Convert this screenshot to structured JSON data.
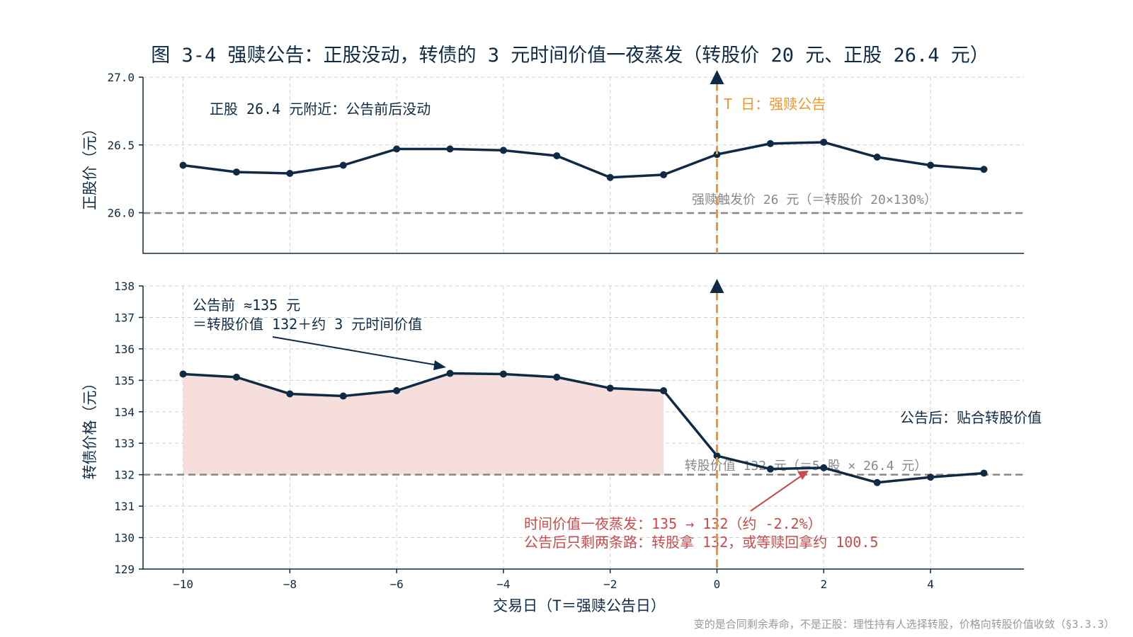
{
  "chart_data": [
    {
      "type": "line",
      "title": "图 3-4 强赎公告：正股没动，转债的 3 元时间价值一夜蒸发（转股价 20 元、正股 26.4 元）",
      "ylabel": "正股价（元）",
      "ylim": [
        25.7,
        27.0
      ],
      "yticks": [
        "26.0",
        "26.5",
        "27.0"
      ],
      "grid": true,
      "x": [
        -10,
        -9,
        -8,
        -7,
        -6,
        -5,
        -4,
        -3,
        -2,
        -1,
        0,
        1,
        2,
        3,
        4,
        5
      ],
      "values": [
        26.35,
        26.3,
        26.29,
        26.35,
        26.47,
        26.47,
        26.46,
        26.42,
        26.26,
        26.28,
        26.43,
        26.51,
        26.52,
        26.41,
        26.35,
        26.32
      ],
      "reference_line": {
        "y": 26.0,
        "label": "强赎触发价 26 元（＝转股价 20×130%）"
      },
      "event_label": "T 日：强赎公告",
      "annotation": "正股 26.4 元附近：公告前后没动"
    },
    {
      "type": "line",
      "ylabel": "转债价格（元）",
      "xlabel": "交易日（T＝强赎公告日）",
      "ylim": [
        129,
        138
      ],
      "yticks": [
        "129",
        "130",
        "131",
        "132",
        "133",
        "134",
        "135",
        "136",
        "137",
        "138"
      ],
      "xticks": [
        "−10",
        "−8",
        "−6",
        "−4",
        "−2",
        "0",
        "2",
        "4"
      ],
      "xlim": [
        -10.75,
        5.75
      ],
      "grid": true,
      "x": [
        -10,
        -9,
        -8,
        -7,
        -6,
        -5,
        -4,
        -3,
        -2,
        -1,
        0,
        1,
        2,
        3,
        4,
        5
      ],
      "values": [
        135.2,
        135.1,
        134.57,
        134.5,
        134.67,
        135.22,
        135.2,
        135.1,
        134.75,
        134.67,
        132.6,
        132.18,
        132.22,
        131.75,
        131.92,
        132.05
      ],
      "shaded_region": {
        "x_from": -10,
        "x_to": -1,
        "baseline": 132
      },
      "reference_line": {
        "y": 132,
        "label": "转股价值 132 元（＝5 股 × 26.4 元）"
      },
      "annotations": {
        "before_line1": "公告前 ≈135 元",
        "before_line2": "＝转股价值 132＋约 3 元时间价值",
        "after": "公告后：贴合转股价值",
        "drop_line1": "时间价值一夜蒸发：135 → 132（约 -2.2%）",
        "drop_line2": "公告后只剩两条路：转股拿 132，或等赎回拿约 100.5"
      },
      "footnote": "变的是合同剩余寿命，不是正股：理性持有人选择转股，价格向转股价值收敛（§3.3.3）"
    }
  ],
  "colors": {
    "series": "#0f2a44",
    "event_line": "#f0962c",
    "reference": "#888888",
    "highlight_text": "#c94b4b",
    "shade": "#f6dedd"
  }
}
